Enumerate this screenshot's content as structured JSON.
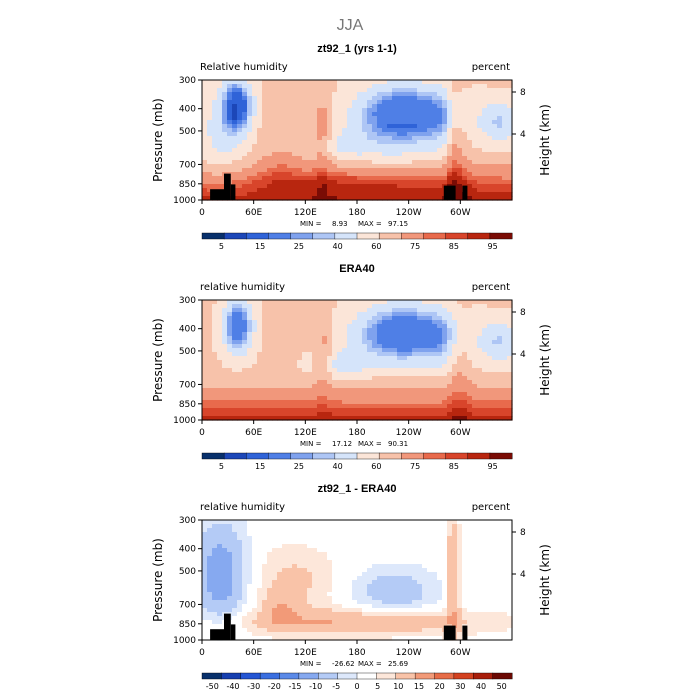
{
  "figure": {
    "title": "JJA"
  },
  "colors": {
    "positive_scale": [
      "#08306b",
      "#1c47b8",
      "#2f63d8",
      "#4f7fe6",
      "#7fa2ee",
      "#aec6f5",
      "#d5e4fa",
      "#fbe5d8",
      "#f7c2aa",
      "#f1977b",
      "#e86a4c",
      "#d8452b",
      "#b8260f",
      "#7a0c05"
    ],
    "diff_scale": [
      "#08306b",
      "#163fb0",
      "#2456d4",
      "#3a6fe0",
      "#5b8ae8",
      "#86a9f0",
      "#b4cbf6",
      "#dde8fb",
      "#ffffff",
      "#fde7da",
      "#f9c3a8",
      "#f29a78",
      "#e76c47",
      "#d3411f",
      "#a81e0b",
      "#6b0903"
    ],
    "terrain": "#000000"
  },
  "chart_data": [
    {
      "type": "heatmap",
      "title": "zt92_1 (yrs 1-1)",
      "left_label": "Relative humidity",
      "right_label": "percent",
      "ylabel": "Pressure (mb)",
      "ylabel_right": "Height (km)",
      "x_ticks": [
        "0",
        "60E",
        "120E",
        "180",
        "120W",
        "60W"
      ],
      "y_ticks": [
        "300",
        "400",
        "500",
        "700",
        "850",
        "1000"
      ],
      "y_right_ticks": [
        "8",
        "4"
      ],
      "stats": {
        "min_label": "MIN =",
        "min": "8.93",
        "max_label": "MAX =",
        "max": "97.15"
      },
      "colorbar_labels": [
        "5",
        "15",
        "25",
        "40",
        "60",
        "75",
        "85",
        "95"
      ],
      "colorscale": "positive",
      "field": "rh_model"
    },
    {
      "type": "heatmap",
      "title": "ERA40",
      "left_label": "relative humidity",
      "right_label": "percent",
      "ylabel": "Pressure (mb)",
      "ylabel_right": "Height (km)",
      "x_ticks": [
        "0",
        "60E",
        "120E",
        "180",
        "120W",
        "60W"
      ],
      "y_ticks": [
        "300",
        "400",
        "500",
        "700",
        "850",
        "1000"
      ],
      "y_right_ticks": [
        "8",
        "4"
      ],
      "stats": {
        "min_label": "MIN =",
        "min": "17.12",
        "max_label": "MAX =",
        "max": "90.31"
      },
      "colorbar_labels": [
        "5",
        "15",
        "25",
        "40",
        "60",
        "75",
        "85",
        "95"
      ],
      "colorscale": "positive",
      "field": "rh_era40"
    },
    {
      "type": "heatmap",
      "title": "zt92_1 - ERA40",
      "left_label": "relative humidity",
      "right_label": "percent",
      "ylabel": "Pressure (mb)",
      "ylabel_right": "Height (km)",
      "x_ticks": [
        "0",
        "60E",
        "120E",
        "180",
        "120W",
        "60W"
      ],
      "y_ticks": [
        "300",
        "400",
        "500",
        "700",
        "850",
        "1000"
      ],
      "y_right_ticks": [
        "8",
        "4"
      ],
      "stats": {
        "min_label": "MIN =",
        "min": "-26.62",
        "max_label": "MAX =",
        "max": "25.69"
      },
      "colorbar_labels": [
        "-50",
        "-40",
        "-30",
        "-20",
        "-15",
        "-10",
        "-5",
        "0",
        "5",
        "10",
        "15",
        "20",
        "30",
        "40",
        "50"
      ],
      "colorscale": "diff",
      "field": "rh_diff"
    }
  ]
}
